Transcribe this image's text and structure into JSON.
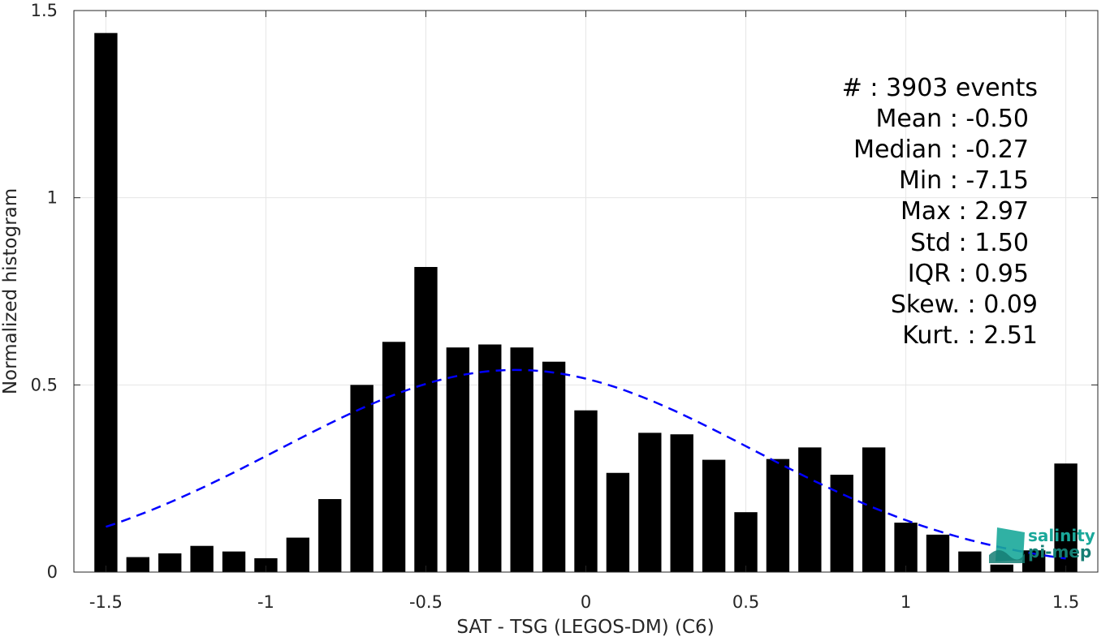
{
  "chart_data": {
    "type": "bar",
    "xlabel": "SAT - TSG (LEGOS-DM) (C6)",
    "ylabel": "Normalized histogram",
    "xlim": [
      -1.6,
      1.6
    ],
    "ylim": [
      0,
      1.5
    ],
    "x_ticks": [
      "-1.5",
      "-1",
      "-0.5",
      "0",
      "0.5",
      "1",
      "1.5"
    ],
    "y_ticks": [
      "0",
      "0.5",
      "1",
      "1.5"
    ],
    "grid": true,
    "bar_color": "#000000",
    "series": [
      {
        "x": [
          -1.5,
          -1.4,
          -1.3,
          -1.2,
          -1.1,
          -1.0,
          -0.9,
          -0.8,
          -0.7,
          -0.6,
          -0.5,
          -0.4,
          -0.3,
          -0.2,
          -0.1,
          0.0,
          0.1,
          0.2,
          0.3,
          0.4,
          0.5,
          0.6,
          0.7,
          0.8,
          0.9,
          1.0,
          1.1,
          1.2,
          1.3,
          1.4,
          1.5
        ],
        "values": [
          1.44,
          0.04,
          0.05,
          0.07,
          0.055,
          0.037,
          0.092,
          0.195,
          0.5,
          0.615,
          0.815,
          0.6,
          0.608,
          0.6,
          0.562,
          0.432,
          0.265,
          0.372,
          0.368,
          0.3,
          0.16,
          0.302,
          0.333,
          0.26,
          0.333,
          0.132,
          0.1,
          0.055,
          0.02,
          0.058,
          0.29
        ]
      }
    ],
    "fit_curve": {
      "style": "dashed",
      "color": "#0000ff",
      "mean": -0.22,
      "std": 0.74,
      "peak": 0.54,
      "x_range": [
        -1.5,
        1.5
      ]
    }
  },
  "stats": {
    "events": "#   : 3903 events",
    "mean": "Mean : -0.50",
    "median": "Median : -0.27",
    "min": "Min : -7.15",
    "max": "Max : 2.97",
    "std": "Std : 1.50",
    "iqr": "IQR : 0.95",
    "skew": "Skew. : 0.09",
    "kurt": "Kurt. : 2.51"
  },
  "logo": {
    "line1": "salinity",
    "line2": "pi-mep",
    "color": "#1aa89a"
  }
}
